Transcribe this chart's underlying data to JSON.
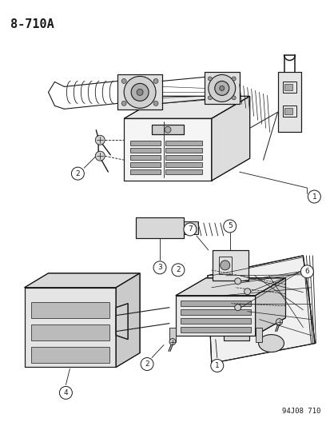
{
  "title": "8-710A",
  "code": "94J08 710",
  "bg": "#ffffff",
  "lc": "#1a1a1a",
  "fig_w": 4.14,
  "fig_h": 5.33,
  "dpi": 100
}
